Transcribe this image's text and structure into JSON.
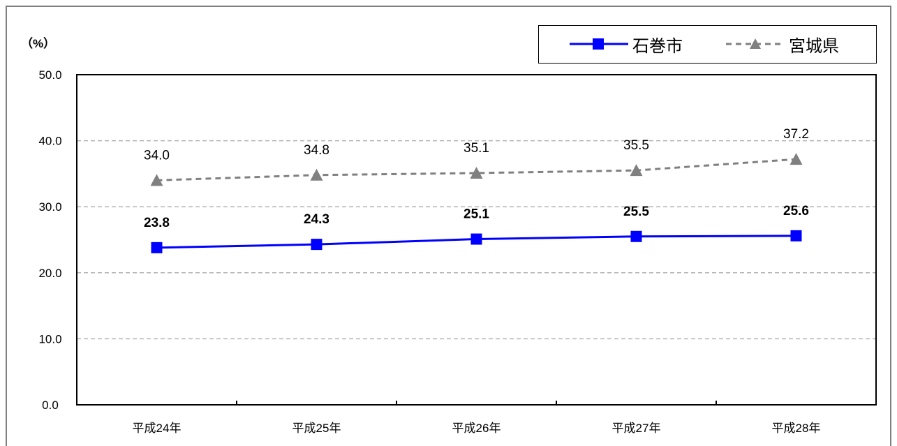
{
  "chart_data": {
    "type": "line",
    "categories": [
      "平成24年",
      "平成25年",
      "平成26年",
      "平成27年",
      "平成28年"
    ],
    "series": [
      {
        "name": "石巻市",
        "values": [
          23.8,
          24.3,
          25.1,
          25.5,
          25.6
        ],
        "color": "#0000ff",
        "marker": "square",
        "line": "solid"
      },
      {
        "name": "宮城県",
        "values": [
          34.0,
          34.8,
          35.1,
          35.5,
          37.2
        ],
        "color": "#808080",
        "marker": "triangle",
        "line": "dashed"
      }
    ],
    "y_unit": "（%）",
    "ylim": [
      0,
      50
    ],
    "yticks": [
      "0.0",
      "10.0",
      "20.0",
      "30.0",
      "40.0",
      "50.0"
    ],
    "grid": true,
    "legend_position": "top-right",
    "value_labels": {
      "石巻市": [
        "23.8",
        "24.3",
        "25.1",
        "25.5",
        "25.6"
      ],
      "宮城県": [
        "34.0",
        "34.8",
        "35.1",
        "35.5",
        "37.2"
      ]
    }
  }
}
